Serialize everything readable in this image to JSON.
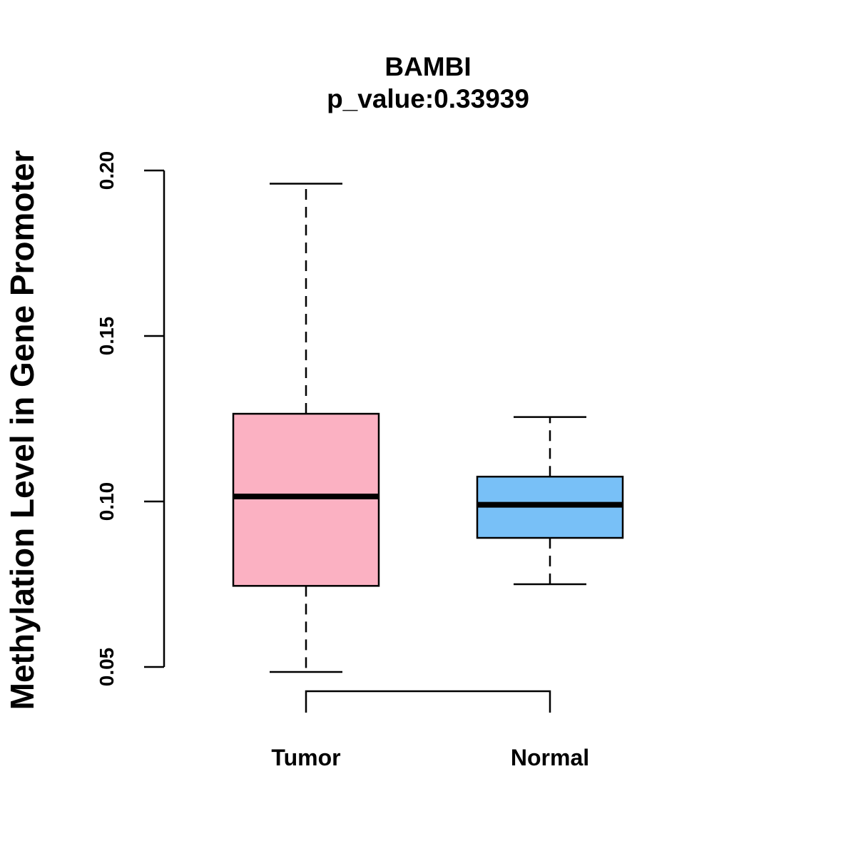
{
  "chart_data": {
    "type": "boxplot",
    "title": "BAMBI",
    "subtitle": "p_value:0.33939",
    "ylabel": "Methylation Level in Gene Promoter",
    "xlabel": "",
    "ylim": [
      0.05,
      0.2
    ],
    "y_ticks": [
      0.05,
      0.1,
      0.15,
      0.2
    ],
    "y_tick_labels": [
      "0.05",
      "0.10",
      "0.15",
      "0.20"
    ],
    "categories": [
      "Tumor",
      "Normal"
    ],
    "series": [
      {
        "name": "Tumor",
        "whisker_low": 0.0485,
        "q1": 0.0745,
        "median": 0.1015,
        "q3": 0.1265,
        "whisker_high": 0.196,
        "color": "#FBB1C2"
      },
      {
        "name": "Normal",
        "whisker_low": 0.075,
        "q1": 0.089,
        "median": 0.099,
        "q3": 0.1075,
        "whisker_high": 0.1255,
        "color": "#78C0F7"
      }
    ],
    "comparison_bracket": {
      "between": [
        "Tumor",
        "Normal"
      ]
    }
  }
}
